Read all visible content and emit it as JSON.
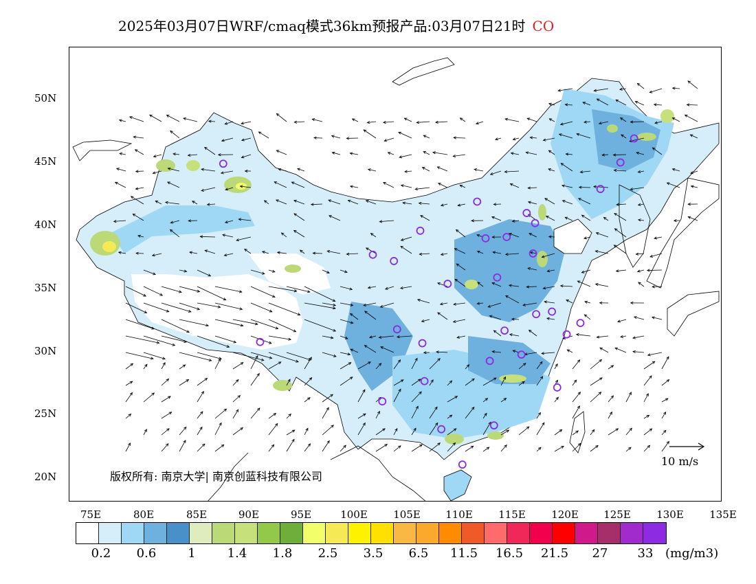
{
  "title": {
    "text": "2025年03月07日WRF/cmaq模式36km预报产品:03月07日21时",
    "species": "CO"
  },
  "map": {
    "lat_labels": [
      "50N",
      "45N",
      "40N",
      "35N",
      "30N",
      "25N",
      "20N"
    ],
    "lon_labels": [
      "75E",
      "80E",
      "85E",
      "90E",
      "95E",
      "100E",
      "105E",
      "110E",
      "115E",
      "120E",
      "125E",
      "130E",
      "135E"
    ],
    "copyright": "版权所有: 南京大学| 南京创蓝科技有限公司",
    "reference_vector": "10 m/s",
    "station_marker_color": "#8a2be2",
    "cities": [
      {
        "lon": 87.6,
        "lat": 43.8
      },
      {
        "lon": 91.1,
        "lat": 29.7
      },
      {
        "lon": 101.8,
        "lat": 36.6
      },
      {
        "lon": 103.8,
        "lat": 36.1
      },
      {
        "lon": 106.3,
        "lat": 38.5
      },
      {
        "lon": 111.7,
        "lat": 40.8
      },
      {
        "lon": 104.1,
        "lat": 30.7
      },
      {
        "lon": 106.5,
        "lat": 29.6
      },
      {
        "lon": 106.7,
        "lat": 26.6
      },
      {
        "lon": 102.7,
        "lat": 25.0
      },
      {
        "lon": 108.3,
        "lat": 22.8
      },
      {
        "lon": 113.3,
        "lat": 23.1
      },
      {
        "lon": 110.3,
        "lat": 20.0
      },
      {
        "lon": 112.9,
        "lat": 28.2
      },
      {
        "lon": 114.3,
        "lat": 30.6
      },
      {
        "lon": 115.9,
        "lat": 28.7
      },
      {
        "lon": 113.6,
        "lat": 34.8
      },
      {
        "lon": 108.9,
        "lat": 34.3
      },
      {
        "lon": 112.5,
        "lat": 37.9
      },
      {
        "lon": 114.5,
        "lat": 38.0
      },
      {
        "lon": 116.4,
        "lat": 39.9
      },
      {
        "lon": 117.2,
        "lat": 39.1
      },
      {
        "lon": 117.0,
        "lat": 36.7
      },
      {
        "lon": 117.3,
        "lat": 31.9
      },
      {
        "lon": 118.8,
        "lat": 32.1
      },
      {
        "lon": 120.2,
        "lat": 30.3
      },
      {
        "lon": 121.5,
        "lat": 31.2
      },
      {
        "lon": 119.3,
        "lat": 26.1
      },
      {
        "lon": 123.4,
        "lat": 41.8
      },
      {
        "lon": 125.3,
        "lat": 43.9
      },
      {
        "lon": 126.6,
        "lat": 45.8
      }
    ]
  },
  "legend": {
    "colors": [
      "#ffffff",
      "#d6eefa",
      "#9fd8f4",
      "#6fb1de",
      "#4a90c8",
      "#dfecbd",
      "#bcd978",
      "#c6e07c",
      "#92c94a",
      "#6fae3a",
      "#f2ff6a",
      "#f5ea55",
      "#fff200",
      "#ffe000",
      "#f9b744",
      "#fba92c",
      "#ff8c00",
      "#f05a28",
      "#ff6a6a",
      "#f0285a",
      "#f2004e",
      "#ff0000",
      "#d0198a",
      "#a62f6a",
      "#a12bcc",
      "#8c2be2"
    ],
    "labels": [
      "0.2",
      "0.6",
      "1",
      "1.4",
      "1.8",
      "2.5",
      "3.5",
      "6.5",
      "11.5",
      "16.5",
      "21.5",
      "27",
      "33"
    ],
    "unit": "(mg/m3)"
  }
}
